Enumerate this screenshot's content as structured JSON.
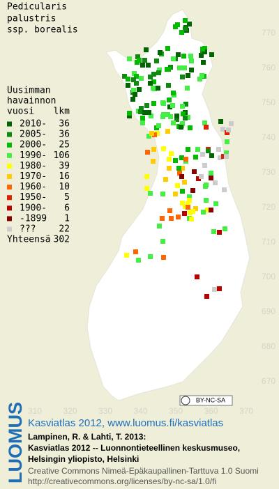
{
  "title": [
    "Pedicularis",
    "palustris",
    "ssp. borealis"
  ],
  "legend": {
    "header": [
      "Uusimman",
      "havainnon",
      "vuosi"
    ],
    "count_header": "lkm",
    "rows": [
      {
        "label": "2010-",
        "count": 36,
        "color": "#006400"
      },
      {
        "label": "2005-",
        "count": 36,
        "color": "#118811"
      },
      {
        "label": "2000-",
        "count": 25,
        "color": "#00bb00"
      },
      {
        "label": "1990-",
        "count": 106,
        "color": "#44ee44"
      },
      {
        "label": "1980-",
        "count": 39,
        "color": "#ffff00"
      },
      {
        "label": "1970-",
        "count": 16,
        "color": "#ffcc00"
      },
      {
        "label": "1960-",
        "count": 10,
        "color": "#ff6600"
      },
      {
        "label": "1950-",
        "count": 5,
        "color": "#dd2200"
      },
      {
        "label": "1900-",
        "count": 6,
        "color": "#bb0000"
      },
      {
        "label": "-1899",
        "count": 1,
        "color": "#880000"
      },
      {
        "label": "???",
        "count": 22,
        "color": "#cccccc"
      }
    ],
    "total_label": "Yhteensä",
    "total": 302
  },
  "grid": {
    "x_labels": [
      310,
      320,
      330,
      340,
      350,
      360,
      370
    ],
    "y_labels": [
      770,
      760,
      750,
      740,
      730,
      720,
      710,
      700,
      690,
      680,
      670
    ]
  },
  "license_badge": "BY-NC-SA",
  "footer": {
    "logo": "LUOMUS",
    "link": "Kasviatlas 2012, www.luomus.fi/kasviatlas",
    "citation": [
      "Lampinen, R. & Lahti, T. 2013:",
      "Kasviatlas 2012 -- Luonnontieteellinen keskusmuseo,",
      "Helsingin yliopisto, Helsinki"
    ],
    "license": [
      "Creative Commons Nimeä-Epäkaupallinen-Tarttuva 1.0 Suomi",
      "http://creativecommons.org/licenses/by-nc-sa/1.0/fi"
    ]
  }
}
